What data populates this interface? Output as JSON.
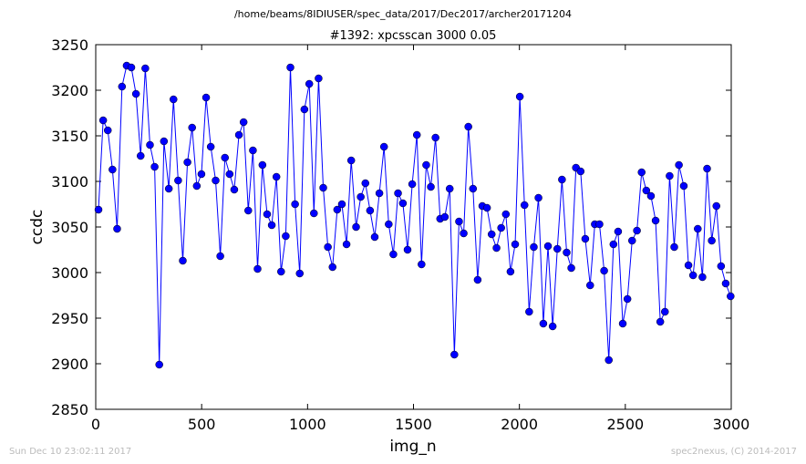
{
  "chart_data": {
    "type": "line",
    "suptitle": "/home/beams/8IDIUSER/spec_data/2017/Dec2017/archer20171204",
    "title": "#1392: xpcsscan 3000 0.05",
    "x_label": "img_n",
    "y_label": "ccdc",
    "footer_left": "Sun Dec 10 23:02:11 2017",
    "footer_right": "spec2nexus, (C) 2014-2017",
    "color": "#0000ff",
    "xlim": [
      0,
      3000
    ],
    "xticks": [
      0,
      500,
      1000,
      1500,
      2000,
      2500,
      3000
    ],
    "ylim": [
      2850,
      3250
    ],
    "yticks": [
      2850,
      2900,
      2950,
      3000,
      3050,
      3100,
      3150,
      3200,
      3250
    ],
    "x": [
      13,
      35,
      57,
      79,
      101,
      124,
      146,
      168,
      190,
      212,
      234,
      256,
      278,
      300,
      322,
      345,
      367,
      389,
      411,
      433,
      455,
      477,
      499,
      521,
      543,
      566,
      588,
      610,
      632,
      654,
      676,
      698,
      720,
      742,
      764,
      787,
      809,
      831,
      853,
      875,
      897,
      919,
      941,
      963,
      985,
      1008,
      1030,
      1052,
      1074,
      1096,
      1118,
      1140,
      1162,
      1184,
      1206,
      1229,
      1251,
      1273,
      1295,
      1317,
      1339,
      1361,
      1383,
      1405,
      1427,
      1450,
      1472,
      1494,
      1516,
      1538,
      1560,
      1582,
      1604,
      1626,
      1648,
      1671,
      1693,
      1715,
      1737,
      1759,
      1781,
      1803,
      1825,
      1847,
      1869,
      1892,
      1914,
      1936,
      1958,
      1980,
      2002,
      2024,
      2046,
      2068,
      2090,
      2113,
      2135,
      2157,
      2179,
      2201,
      2223,
      2245,
      2267,
      2289,
      2311,
      2334,
      2356,
      2378,
      2400,
      2422,
      2444,
      2466,
      2488,
      2510,
      2532,
      2555,
      2577,
      2599,
      2621,
      2643,
      2665,
      2687,
      2709,
      2731,
      2753,
      2776,
      2798,
      2820,
      2842,
      2864,
      2886,
      2908,
      2930,
      2952,
      2974,
      2997
    ],
    "values": [
      3069,
      3167,
      3156,
      3113,
      3048,
      3204,
      3227,
      3225,
      3196,
      3128,
      3224,
      3140,
      3116,
      2899,
      3144,
      3092,
      3190,
      3101,
      3013,
      3121,
      3159,
      3095,
      3108,
      3192,
      3138,
      3101,
      3018,
      3126,
      3108,
      3091,
      3151,
      3165,
      3068,
      3134,
      3004,
      3118,
      3064,
      3052,
      3105,
      3001,
      3040,
      3225,
      3075,
      2999,
      3179,
      3207,
      3065,
      3213,
      3093,
      3028,
      3006,
      3069,
      3075,
      3031,
      3123,
      3050,
      3083,
      3098,
      3068,
      3039,
      3087,
      3138,
      3053,
      3020,
      3087,
      3076,
      3025,
      3097,
      3151,
      3009,
      3118,
      3094,
      3148,
      3059,
      3061,
      3092,
      2910,
      3056,
      3043,
      3160,
      3092,
      2992,
      3073,
      3071,
      3042,
      3027,
      3049,
      3064,
      3001,
      3031,
      3193,
      3074,
      2957,
      3028,
      3082,
      2944,
      3029,
      2941,
      3026,
      3102,
      3022,
      3005,
      3115,
      3111,
      3037,
      2986,
      3053,
      3053,
      3002,
      2904,
      3031,
      3045,
      2944,
      2971,
      3035,
      3046,
      3110,
      3090,
      3084,
      3057,
      2946,
      2957,
      3106,
      3028,
      3118,
      3095,
      3008,
      2997,
      3048,
      2995,
      3114,
      3035,
      3073,
      3007,
      2988,
      2974
    ]
  }
}
